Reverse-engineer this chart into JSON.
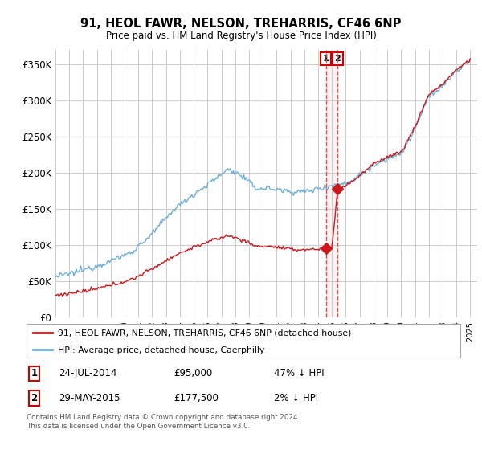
{
  "title": "91, HEOL FAWR, NELSON, TREHARRIS, CF46 6NP",
  "subtitle": "Price paid vs. HM Land Registry's House Price Index (HPI)",
  "ylim": [
    0,
    370000
  ],
  "yticks": [
    0,
    50000,
    100000,
    150000,
    200000,
    250000,
    300000,
    350000
  ],
  "ytick_labels": [
    "£0",
    "£50K",
    "£100K",
    "£150K",
    "£200K",
    "£250K",
    "£300K",
    "£350K"
  ],
  "bg_color": "#ffffff",
  "grid_color": "#cccccc",
  "hpi_color": "#6baed6",
  "price_color": "#cb181d",
  "vline_color": "#e05050",
  "legend1": "91, HEOL FAWR, NELSON, TREHARRIS, CF46 6NP (detached house)",
  "legend2": "HPI: Average price, detached house, Caerphilly",
  "sale1_date": "24-JUL-2014",
  "sale1_price": "£95,000",
  "sale1_hpi": "47% ↓ HPI",
  "sale2_date": "29-MAY-2015",
  "sale2_price": "£177,500",
  "sale2_hpi": "2% ↓ HPI",
  "footer": "Contains HM Land Registry data © Crown copyright and database right 2024.\nThis data is licensed under the Open Government Licence v3.0.",
  "sale1_year": 2014.56,
  "sale2_year": 2015.41,
  "sale1_value": 95000,
  "sale2_value": 177500
}
